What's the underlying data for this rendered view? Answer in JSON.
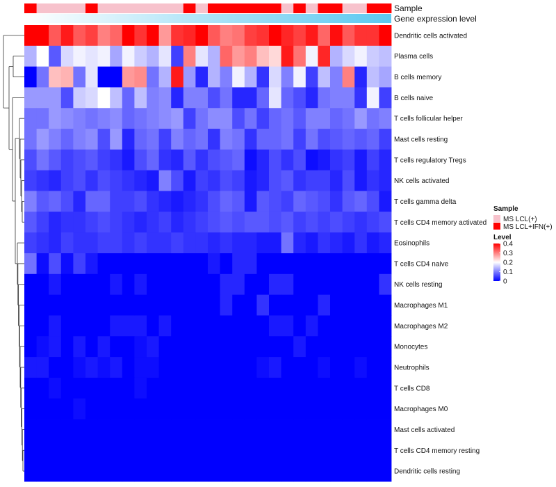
{
  "colors": {
    "low": "#0000ff",
    "mid": "#ffffff",
    "high": "#ff0000",
    "sample_lcl": "#f7c2cc",
    "sample_ifn": "#ff0000",
    "dendrogram": "#333333"
  },
  "chart_data": {
    "type": "heatmap",
    "title": "",
    "value_range": [
      0,
      0.4
    ],
    "n_samples": 30,
    "rows": [
      "Dendritic cells activated",
      "Plasma cells",
      "B cells memory",
      "B cells naive",
      "T cells follicular helper",
      "Mast cells resting",
      "T cells regulatory  Tregs",
      "NK cells activated",
      "T cells gamma delta",
      "T cells CD4 memory activated",
      "Eosinophils",
      "T cells CD4 naive",
      "NK cells resting",
      "Macrophages M1",
      "Macrophages M2",
      "Monocytes",
      "Neutrophils",
      "T cells CD8",
      "Macrophages M0",
      "Mast cells activated",
      "T cells CD4 memory resting",
      "Dendritic cells resting"
    ],
    "values": [
      [
        0.4,
        0.4,
        0.33,
        0.38,
        0.33,
        0.35,
        0.3,
        0.32,
        0.4,
        0.36,
        0.4,
        0.28,
        0.36,
        0.37,
        0.4,
        0.33,
        0.3,
        0.31,
        0.35,
        0.36,
        0.4,
        0.37,
        0.35,
        0.38,
        0.32,
        0.39,
        0.33,
        0.36,
        0.36,
        0.4
      ],
      [
        0.14,
        0.2,
        0.07,
        0.17,
        0.19,
        0.18,
        0.19,
        0.13,
        0.19,
        0.16,
        0.14,
        0.18,
        0.05,
        0.3,
        0.18,
        0.14,
        0.32,
        0.28,
        0.3,
        0.25,
        0.23,
        0.38,
        0.31,
        0.19,
        0.37,
        0.14,
        0.17,
        0.19,
        0.16,
        0.15
      ],
      [
        0.0,
        0.09,
        0.25,
        0.26,
        0.09,
        0.18,
        0.0,
        0.0,
        0.28,
        0.29,
        0.09,
        0.14,
        0.38,
        0.12,
        0.03,
        0.14,
        0.1,
        0.19,
        0.14,
        0.04,
        0.17,
        0.1,
        0.19,
        0.05,
        0.15,
        0.1,
        0.3,
        0.03,
        0.15,
        0.13
      ],
      [
        0.12,
        0.12,
        0.12,
        0.06,
        0.16,
        0.17,
        0.2,
        0.15,
        0.08,
        0.15,
        0.1,
        0.11,
        0.03,
        0.1,
        0.1,
        0.06,
        0.09,
        0.03,
        0.03,
        0.08,
        0.18,
        0.08,
        0.06,
        0.03,
        0.09,
        0.1,
        0.1,
        0.04,
        0.19,
        0.05
      ],
      [
        0.09,
        0.09,
        0.12,
        0.11,
        0.1,
        0.09,
        0.1,
        0.11,
        0.08,
        0.09,
        0.1,
        0.11,
        0.12,
        0.05,
        0.09,
        0.11,
        0.11,
        0.06,
        0.09,
        0.05,
        0.08,
        0.09,
        0.07,
        0.1,
        0.1,
        0.08,
        0.09,
        0.12,
        0.09,
        0.1
      ],
      [
        0.09,
        0.12,
        0.1,
        0.08,
        0.1,
        0.11,
        0.06,
        0.12,
        0.03,
        0.08,
        0.09,
        0.05,
        0.1,
        0.08,
        0.09,
        0.04,
        0.1,
        0.09,
        0.04,
        0.08,
        0.08,
        0.09,
        0.05,
        0.09,
        0.06,
        0.07,
        0.08,
        0.07,
        0.08,
        0.05
      ],
      [
        0.06,
        0.09,
        0.07,
        0.05,
        0.06,
        0.07,
        0.05,
        0.04,
        0.02,
        0.06,
        0.08,
        0.04,
        0.03,
        0.07,
        0.04,
        0.06,
        0.07,
        0.08,
        0.01,
        0.03,
        0.06,
        0.04,
        0.06,
        0.01,
        0.02,
        0.04,
        0.05,
        0.02,
        0.05,
        0.03
      ],
      [
        0.05,
        0.04,
        0.03,
        0.05,
        0.06,
        0.04,
        0.06,
        0.05,
        0.04,
        0.03,
        0.02,
        0.1,
        0.06,
        0.02,
        0.05,
        0.04,
        0.06,
        0.05,
        0.02,
        0.03,
        0.06,
        0.07,
        0.04,
        0.05,
        0.05,
        0.03,
        0.06,
        0.02,
        0.04,
        0.03
      ],
      [
        0.1,
        0.07,
        0.08,
        0.06,
        0.03,
        0.08,
        0.08,
        0.05,
        0.05,
        0.06,
        0.04,
        0.03,
        0.02,
        0.03,
        0.04,
        0.06,
        0.08,
        0.07,
        0.02,
        0.07,
        0.06,
        0.05,
        0.08,
        0.07,
        0.06,
        0.04,
        0.07,
        0.08,
        0.06,
        0.02
      ],
      [
        0.07,
        0.05,
        0.03,
        0.04,
        0.04,
        0.05,
        0.06,
        0.05,
        0.04,
        0.03,
        0.04,
        0.05,
        0.03,
        0.04,
        0.05,
        0.06,
        0.07,
        0.06,
        0.07,
        0.07,
        0.06,
        0.07,
        0.05,
        0.06,
        0.05,
        0.06,
        0.05,
        0.04,
        0.05,
        0.06
      ],
      [
        0.05,
        0.04,
        0.03,
        0.05,
        0.04,
        0.04,
        0.05,
        0.05,
        0.04,
        0.05,
        0.04,
        0.04,
        0.05,
        0.04,
        0.04,
        0.03,
        0.04,
        0.03,
        0.03,
        0.02,
        0.02,
        0.09,
        0.03,
        0.02,
        0.04,
        0.03,
        0.02,
        0.04,
        0.02,
        0.03
      ],
      [
        0.09,
        0.01,
        0.06,
        0.01,
        0.05,
        0.02,
        0.0,
        0.0,
        0.0,
        0.0,
        0.0,
        0.0,
        0.0,
        0.0,
        0.0,
        0.02,
        0.0,
        0.03,
        0.03,
        0.0,
        0.0,
        0.0,
        0.0,
        0.0,
        0.0,
        0.0,
        0.0,
        0.0,
        0.0,
        0.0
      ],
      [
        0.0,
        0.0,
        0.02,
        0.0,
        0.0,
        0.0,
        0.0,
        0.02,
        0.0,
        0.02,
        0.0,
        0.0,
        0.0,
        0.0,
        0.0,
        0.0,
        0.03,
        0.03,
        0.0,
        0.0,
        0.03,
        0.03,
        0.0,
        0.0,
        0.0,
        0.0,
        0.0,
        0.0,
        0.0,
        0.04
      ],
      [
        0.0,
        0.0,
        0.0,
        0.0,
        0.0,
        0.0,
        0.0,
        0.0,
        0.0,
        0.0,
        0.0,
        0.0,
        0.0,
        0.0,
        0.0,
        0.0,
        0.03,
        0.0,
        0.0,
        0.04,
        0.0,
        0.0,
        0.0,
        0.0,
        0.03,
        0.0,
        0.0,
        0.0,
        0.0,
        0.0
      ],
      [
        0.0,
        0.0,
        0.02,
        0.0,
        0.0,
        0.0,
        0.0,
        0.02,
        0.02,
        0.02,
        0.0,
        0.02,
        0.0,
        0.0,
        0.0,
        0.0,
        0.0,
        0.0,
        0.0,
        0.0,
        0.02,
        0.02,
        0.0,
        0.02,
        0.0,
        0.0,
        0.0,
        0.0,
        0.0,
        0.0
      ],
      [
        0.0,
        0.01,
        0.02,
        0.0,
        0.02,
        0.0,
        0.02,
        0.0,
        0.0,
        0.01,
        0.02,
        0.0,
        0.0,
        0.0,
        0.0,
        0.0,
        0.0,
        0.0,
        0.0,
        0.0,
        0.0,
        0.0,
        0.02,
        0.0,
        0.0,
        0.0,
        0.0,
        0.0,
        0.0,
        0.0
      ],
      [
        0.02,
        0.02,
        0.0,
        0.0,
        0.01,
        0.02,
        0.01,
        0.02,
        0.0,
        0.01,
        0.01,
        0.0,
        0.0,
        0.0,
        0.0,
        0.0,
        0.0,
        0.0,
        0.0,
        0.01,
        0.02,
        0.0,
        0.0,
        0.0,
        0.01,
        0.0,
        0.0,
        0.01,
        0.0,
        0.0
      ],
      [
        0.0,
        0.0,
        0.01,
        0.0,
        0.0,
        0.0,
        0.0,
        0.0,
        0.0,
        0.01,
        0.0,
        0.0,
        0.0,
        0.0,
        0.0,
        0.0,
        0.0,
        0.0,
        0.0,
        0.0,
        0.0,
        0.0,
        0.0,
        0.0,
        0.0,
        0.0,
        0.0,
        0.0,
        0.0,
        0.0
      ],
      [
        0.0,
        0.0,
        0.0,
        0.0,
        0.01,
        0.0,
        0.0,
        0.0,
        0.0,
        0.0,
        0.0,
        0.0,
        0.0,
        0.0,
        0.0,
        0.0,
        0.0,
        0.0,
        0.0,
        0.0,
        0.0,
        0.0,
        0.0,
        0.0,
        0.0,
        0.0,
        0.0,
        0.0,
        0.0,
        0.0
      ],
      [
        0.0,
        0.0,
        0.0,
        0.0,
        0.0,
        0.0,
        0.0,
        0.0,
        0.0,
        0.0,
        0.0,
        0.0,
        0.0,
        0.0,
        0.0,
        0.0,
        0.0,
        0.0,
        0.0,
        0.0,
        0.0,
        0.0,
        0.0,
        0.0,
        0.0,
        0.0,
        0.0,
        0.0,
        0.0,
        0.0
      ],
      [
        0.0,
        0.0,
        0.0,
        0.0,
        0.0,
        0.0,
        0.0,
        0.0,
        0.0,
        0.0,
        0.0,
        0.0,
        0.0,
        0.0,
        0.0,
        0.0,
        0.0,
        0.0,
        0.0,
        0.0,
        0.0,
        0.0,
        0.0,
        0.0,
        0.0,
        0.0,
        0.0,
        0.0,
        0.0,
        0.0
      ],
      [
        0.0,
        0.0,
        0.0,
        0.0,
        0.0,
        0.0,
        0.0,
        0.0,
        0.0,
        0.0,
        0.0,
        0.0,
        0.0,
        0.0,
        0.0,
        0.0,
        0.0,
        0.0,
        0.0,
        0.0,
        0.0,
        0.0,
        0.0,
        0.0,
        0.0,
        0.0,
        0.0,
        0.0,
        0.0,
        0.0
      ]
    ],
    "sample_annotation": {
      "label": "Sample",
      "groups": [
        "ifn",
        "lcl",
        "lcl",
        "lcl",
        "lcl",
        "ifn",
        "lcl",
        "lcl",
        "lcl",
        "lcl",
        "lcl",
        "lcl",
        "lcl",
        "ifn",
        "lcl",
        "ifn",
        "ifn",
        "ifn",
        "ifn",
        "ifn",
        "ifn",
        "lcl",
        "ifn",
        "lcl",
        "ifn",
        "ifn",
        "lcl",
        "lcl",
        "ifn",
        "ifn"
      ]
    },
    "expression_annotation": {
      "label": "Gene expression level",
      "start_color": "#ffffff",
      "end_color": "#5bc8f0"
    },
    "legend": {
      "position": "right",
      "sample_title": "Sample",
      "sample_entries": [
        {
          "key": "lcl",
          "label": "MS LCL(+)",
          "color": "#f7c2cc"
        },
        {
          "key": "ifn",
          "label": "MS LCL+IFN(+)",
          "color": "#ff0000"
        }
      ],
      "level_title": "Level",
      "level_ticks": [
        0.4,
        0.3,
        0.2,
        0.1,
        0
      ],
      "level_tick_labels": [
        "0.4",
        "0.3",
        "0.2",
        "0.1",
        "0"
      ]
    }
  }
}
